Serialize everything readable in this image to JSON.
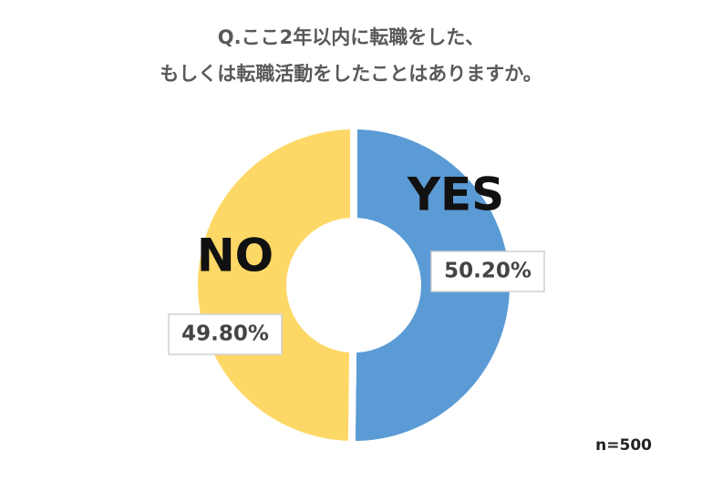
{
  "chart_data": {
    "type": "donut",
    "title": [
      "Q.ここ2年以内に転職をした、",
      "もしくは転職活動をしたことはありますか。"
    ],
    "categories": [
      "YES",
      "NO"
    ],
    "values": [
      50.2,
      49.8
    ],
    "value_labels": [
      "50.20%",
      "49.80%"
    ],
    "colors": [
      "#5b9bd5",
      "#fed866"
    ],
    "note": "n=500"
  }
}
